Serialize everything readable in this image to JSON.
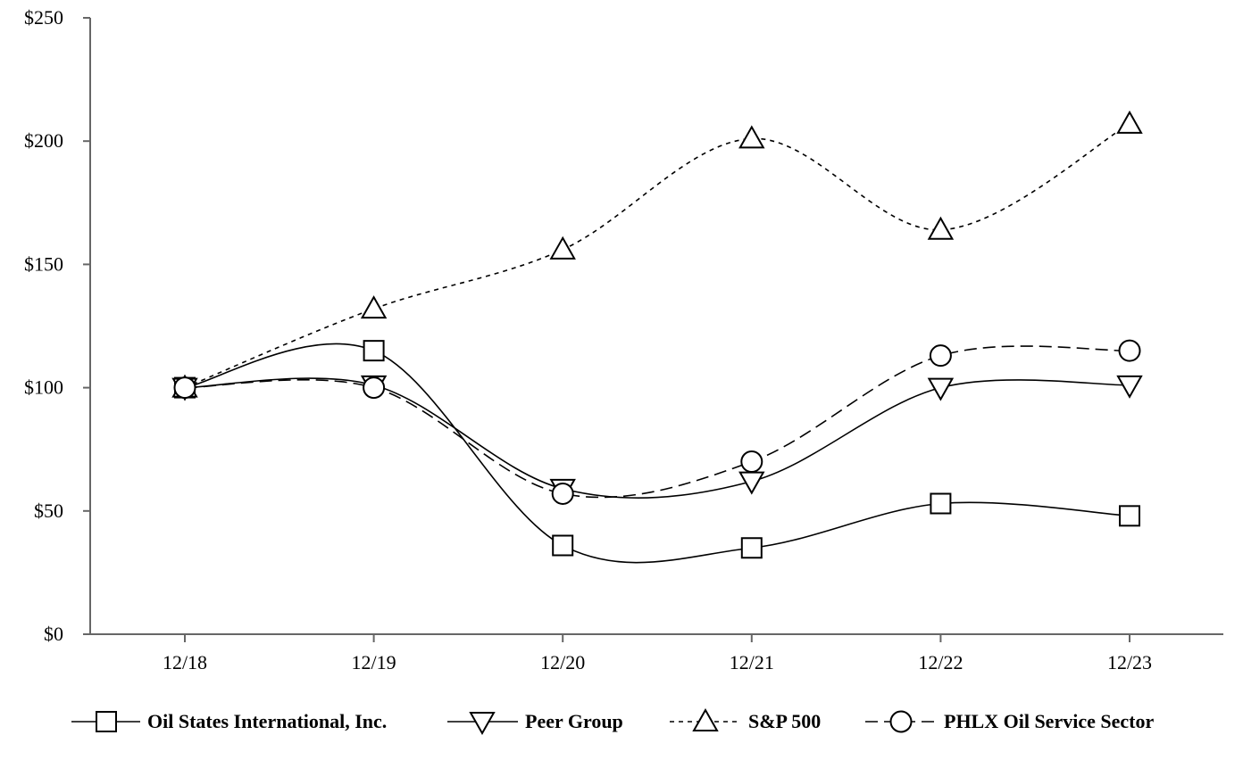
{
  "chart_data": {
    "type": "line",
    "title": "",
    "xlabel": "",
    "ylabel": "",
    "categories": [
      "12/18",
      "12/19",
      "12/20",
      "12/21",
      "12/22",
      "12/23"
    ],
    "ylim": [
      0,
      250
    ],
    "y_ticks": [
      0,
      50,
      100,
      150,
      200,
      250
    ],
    "y_tick_labels": [
      "$0",
      "$50",
      "$100",
      "$150",
      "$200",
      "$250"
    ],
    "grid": false,
    "legend_position": "bottom",
    "series": [
      {
        "name": "Oil States International, Inc.",
        "values": [
          100,
          115,
          36,
          35,
          53,
          48
        ],
        "line": "solid",
        "marker": "square"
      },
      {
        "name": "Peer Group",
        "values": [
          100,
          101,
          59,
          62,
          100,
          101
        ],
        "line": "solid",
        "marker": "triangle-down"
      },
      {
        "name": "S&P 500",
        "values": [
          100,
          132,
          156,
          201,
          164,
          207
        ],
        "line": "dotted",
        "marker": "triangle-up"
      },
      {
        "name": "PHLX Oil Service Sector",
        "values": [
          100,
          100,
          57,
          70,
          113,
          115
        ],
        "line": "dashed",
        "marker": "circle"
      }
    ]
  }
}
